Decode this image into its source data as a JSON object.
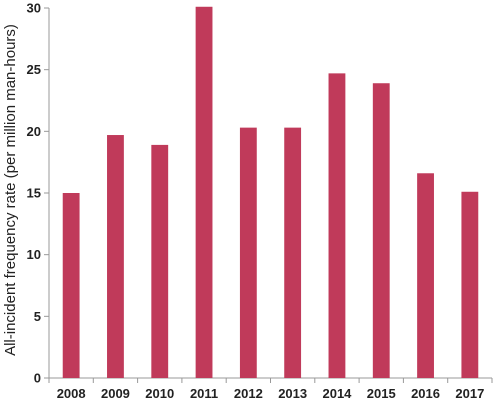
{
  "chart_data": {
    "type": "bar",
    "categories": [
      "2008",
      "2009",
      "2010",
      "2011",
      "2012",
      "2013",
      "2014",
      "2015",
      "2016",
      "2017"
    ],
    "values": [
      15.0,
      19.7,
      18.9,
      30.1,
      20.3,
      20.3,
      24.7,
      23.9,
      16.6,
      15.1
    ],
    "xlabel": "",
    "ylabel": "All-incident frequency rate (per million man-hours)",
    "ylim": [
      0,
      30
    ],
    "yticks": [
      0,
      5,
      10,
      15,
      20,
      25,
      30
    ],
    "grid": false,
    "bar_color": "#c03a5a",
    "axis_color": "#999999"
  }
}
